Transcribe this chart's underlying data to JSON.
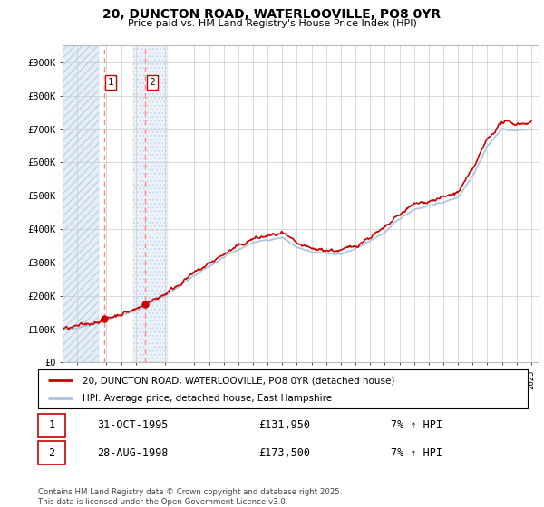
{
  "title": "20, DUNCTON ROAD, WATERLOOVILLE, PO8 0YR",
  "subtitle": "Price paid vs. HM Land Registry's House Price Index (HPI)",
  "ylim": [
    0,
    950000
  ],
  "yticks": [
    0,
    100000,
    200000,
    300000,
    400000,
    500000,
    600000,
    700000,
    800000,
    900000
  ],
  "ytick_labels": [
    "£0",
    "£100K",
    "£200K",
    "£300K",
    "£400K",
    "£500K",
    "£600K",
    "£700K",
    "£800K",
    "£900K"
  ],
  "hpi_color": "#a8c4e0",
  "price_color": "#cc0000",
  "marker_color": "#cc0000",
  "sale1_x": 1995.83,
  "sale1_y": 131950,
  "sale2_x": 1998.65,
  "sale2_y": 173500,
  "legend_house": "20, DUNCTON ROAD, WATERLOOVILLE, PO8 0YR (detached house)",
  "legend_hpi": "HPI: Average price, detached house, East Hampshire",
  "ann1_date": "31-OCT-1995",
  "ann1_price": "£131,950",
  "ann1_hpi": "7% ↑ HPI",
  "ann2_date": "28-AUG-1998",
  "ann2_price": "£173,500",
  "ann2_hpi": "7% ↑ HPI",
  "footer": "Contains HM Land Registry data © Crown copyright and database right 2025.\nThis data is licensed under the Open Government Licence v3.0.",
  "bg": "#ffffff",
  "grid_color": "#cccccc",
  "hatch_region_end": 1995.5,
  "hatch2_start": 1997.8,
  "hatch2_end": 2000.2,
  "xlim_start": 1993,
  "xlim_end": 2025.5
}
